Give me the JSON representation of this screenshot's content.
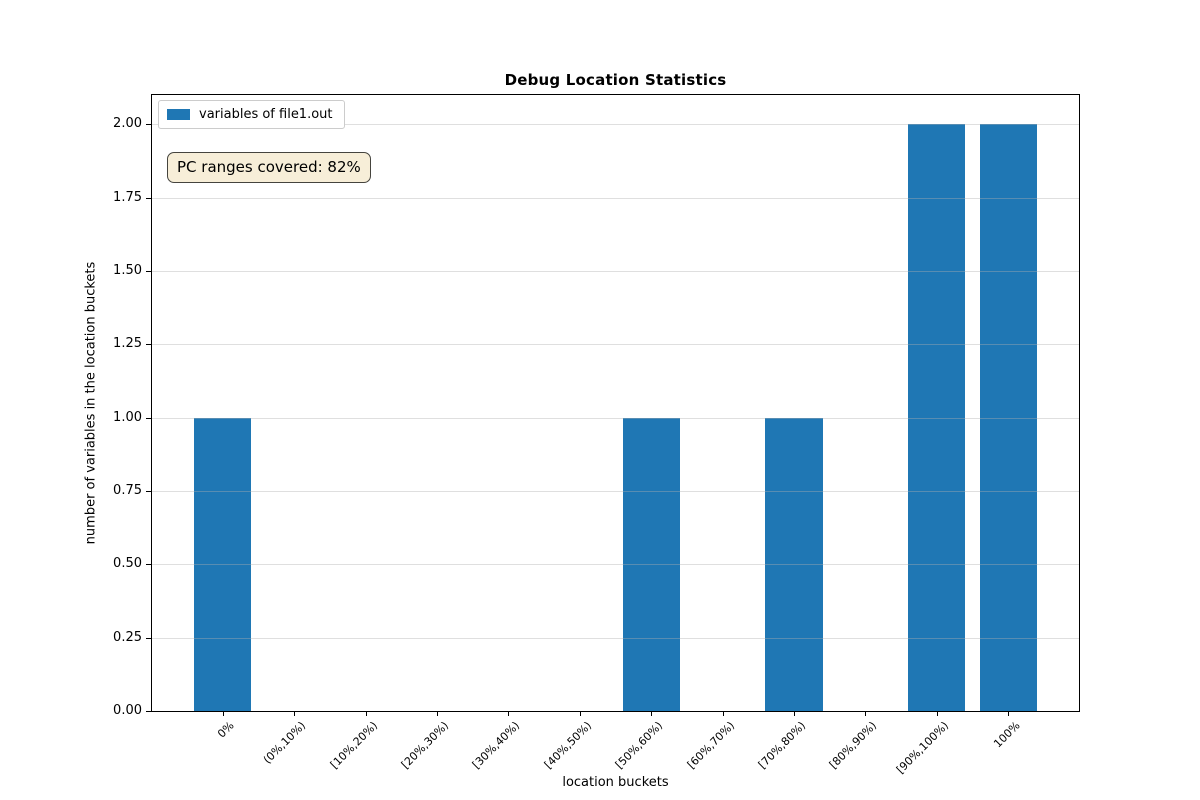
{
  "chart_data": {
    "type": "bar",
    "title": "Debug Location Statistics",
    "xlabel": "location buckets",
    "ylabel": "number of variables in the location buckets",
    "categories": [
      "0%",
      "(0%,10%)",
      "[10%,20%)",
      "[20%,30%)",
      "[30%,40%)",
      "[40%,50%)",
      "[50%,60%)",
      "[60%,70%)",
      "[70%,80%)",
      "[80%,90%)",
      "[90%,100%)",
      "100%"
    ],
    "series": [
      {
        "name": "variables of file1.out",
        "color": "#1f77b4",
        "values": [
          1,
          0,
          0,
          0,
          0,
          0,
          1,
          0,
          1,
          0,
          2,
          2
        ]
      }
    ],
    "annotation": "PC ranges covered: 82%",
    "annotation_colors": {
      "background": "#f7eed8",
      "border": "#45443e"
    },
    "legend_position": "upper left",
    "grid": "horizontal",
    "grid_color": "rgba(176,176,176,0.4)",
    "ylim": [
      0,
      2.1
    ],
    "xlim": [
      -0.99,
      11.99
    ],
    "bar_width": 0.8,
    "yticks": {
      "values": [
        0,
        0.25,
        0.5,
        0.75,
        1,
        1.25,
        1.5,
        1.75,
        2
      ],
      "labels": [
        "0.00",
        "0.25",
        "0.50",
        "0.75",
        "1.00",
        "1.25",
        "1.50",
        "1.75",
        "2.00"
      ]
    }
  }
}
